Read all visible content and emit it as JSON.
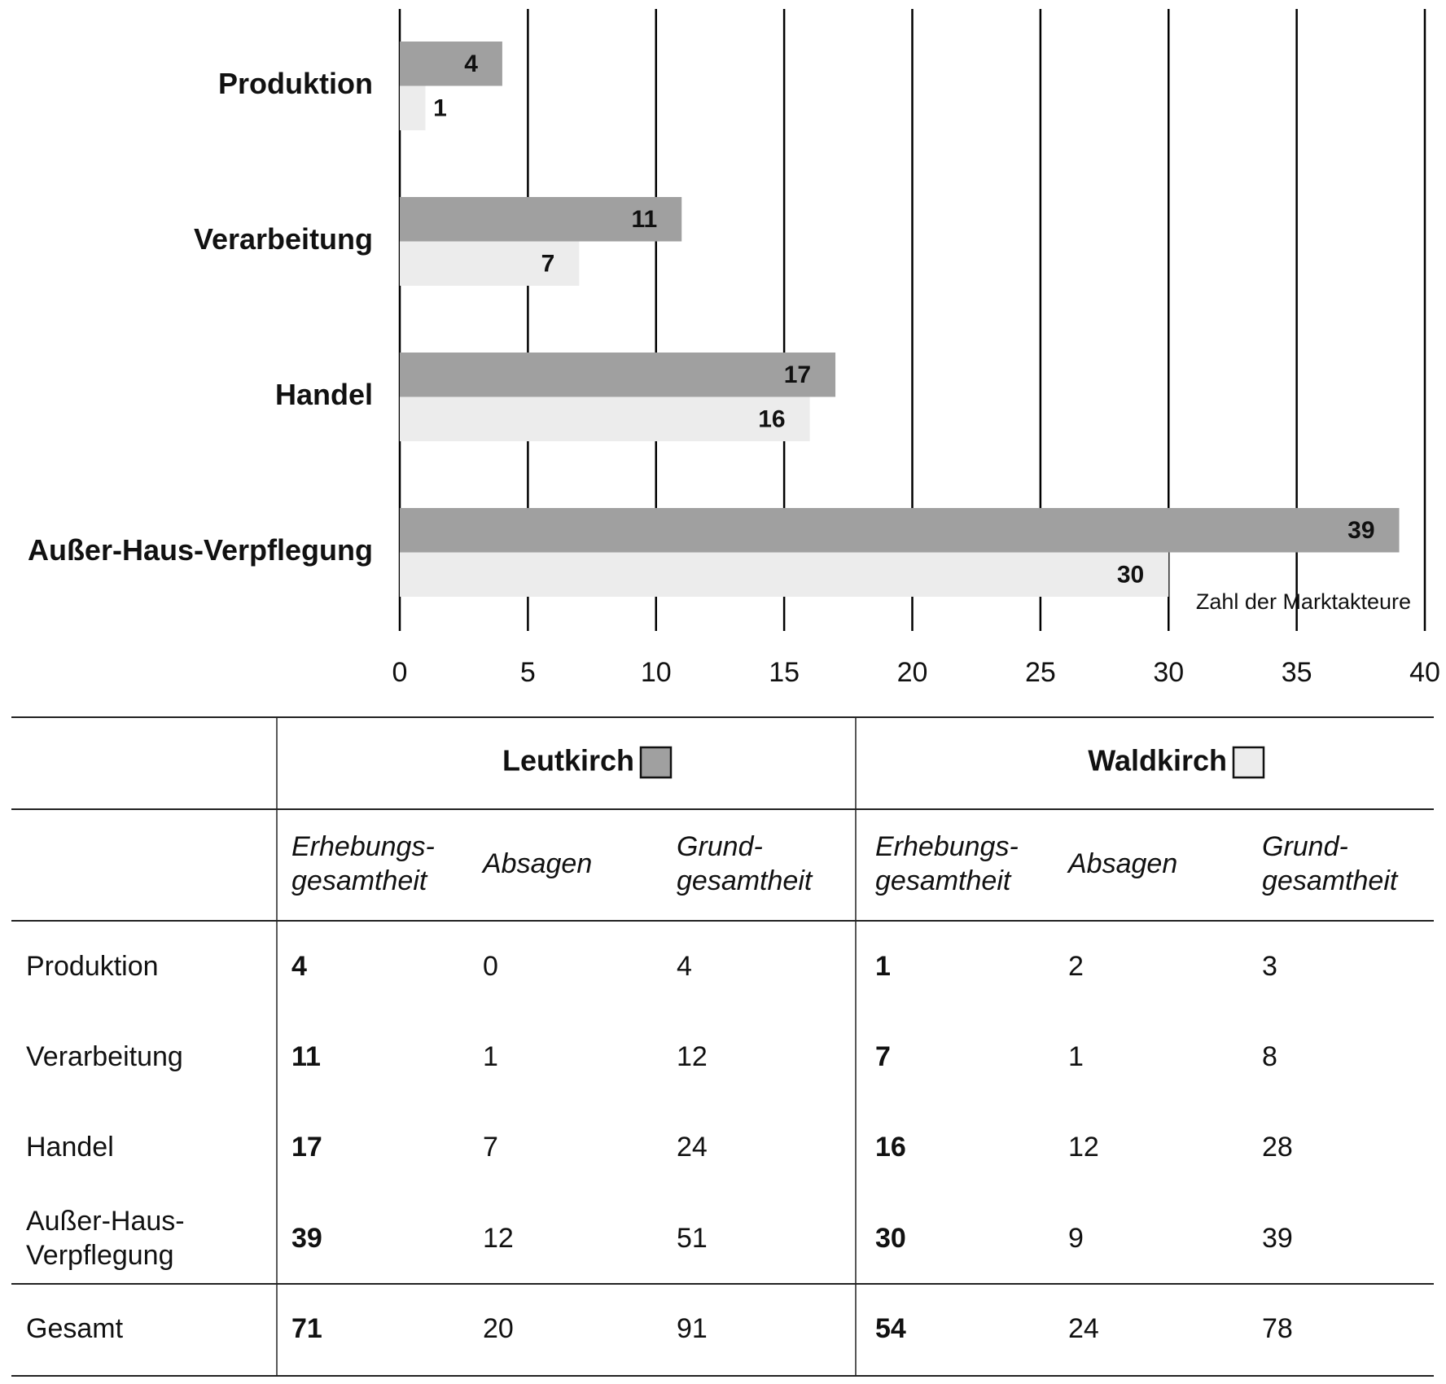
{
  "chart_data": {
    "type": "barh",
    "categories": [
      "Produktion",
      "Verarbeitung",
      "Handel",
      "Außer-Haus-Verpflegung"
    ],
    "series": [
      {
        "name": "Leutkirch",
        "color": "#a0a0a0",
        "values": [
          4,
          11,
          17,
          39
        ]
      },
      {
        "name": "Waldkirch",
        "color": "#ececec",
        "values": [
          1,
          7,
          16,
          30
        ]
      }
    ],
    "xlim": [
      0,
      40
    ],
    "xticks": [
      0,
      5,
      10,
      15,
      20,
      25,
      30,
      35,
      40
    ],
    "grid": true,
    "annotation": "Zahl der Marktakteure"
  },
  "table": {
    "subheaders": [
      [
        "Erhebungs-",
        "gesamtheit"
      ],
      [
        "Absagen"
      ],
      [
        "Grund-",
        "gesamtheit"
      ],
      [
        "Erhebungs-",
        "gesamtheit"
      ],
      [
        "Absagen"
      ],
      [
        "Grund-",
        "gesamtheit"
      ]
    ],
    "rows": [
      {
        "label": [
          "Produktion"
        ],
        "cells": [
          "4",
          "0",
          "4",
          "1",
          "2",
          "3"
        ]
      },
      {
        "label": [
          "Verarbeitung"
        ],
        "cells": [
          "11",
          "1",
          "12",
          "7",
          "1",
          "8"
        ]
      },
      {
        "label": [
          "Handel"
        ],
        "cells": [
          "17",
          "7",
          "24",
          "16",
          "12",
          "28"
        ]
      },
      {
        "label": [
          "Außer-Haus-",
          "Verpflegung"
        ],
        "cells": [
          "39",
          "12",
          "51",
          "30",
          "9",
          "39"
        ]
      },
      {
        "label": [
          "Gesamt"
        ],
        "cells": [
          "71",
          "20",
          "91",
          "54",
          "24",
          "78"
        ]
      }
    ]
  }
}
